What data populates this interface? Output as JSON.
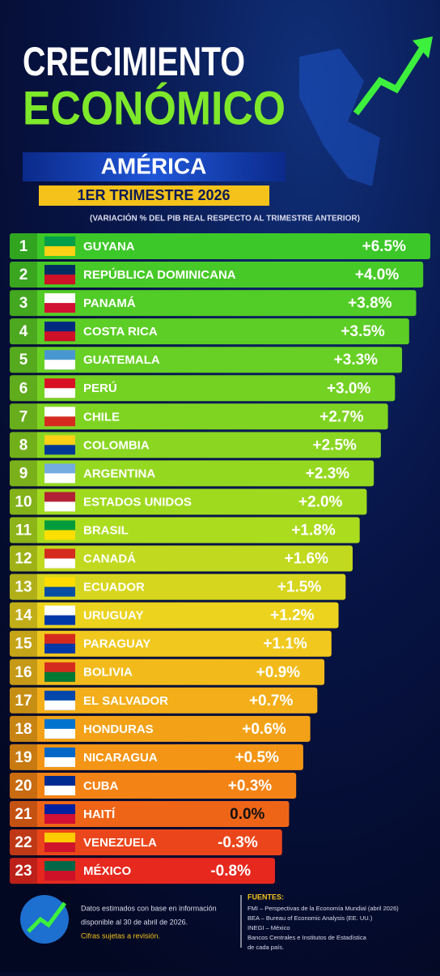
{
  "header": {
    "title_line1": "CRECIMIENTO",
    "title_line2": "ECONÓMICO",
    "region": "AMÉRICA",
    "period": "1ER TRIMESTRE 2026",
    "subtitle": "(VARIACIÓN % DEL PIB REAL RESPECTO AL TRIMESTRE ANTERIOR)"
  },
  "table": {
    "rows": [
      [
        "1",
        "GUYANA",
        "+6.5%"
      ],
      [
        "2",
        "REPÚBLICA DOMINICANA",
        "+4.0%"
      ],
      [
        "3",
        "PANAMÁ",
        "+3.8%"
      ],
      [
        "4",
        "COSTA RICA",
        "+3.5%"
      ],
      [
        "5",
        "GUATEMALA",
        "+3.3%"
      ],
      [
        "6",
        "PERÚ",
        "+3.0%"
      ],
      [
        "7",
        "CHILE",
        "+2.7%"
      ],
      [
        "8",
        "COLOMBIA",
        "+2.5%"
      ],
      [
        "9",
        "ARGENTINA",
        "+2.3%"
      ],
      [
        "10",
        "ESTADOS UNIDOS",
        "+2.0%"
      ],
      [
        "11",
        "BRASIL",
        "+1.8%"
      ],
      [
        "12",
        "CANADÁ",
        "+1.6%"
      ],
      [
        "13",
        "ECUADOR",
        "+1.5%"
      ],
      [
        "14",
        "URUGUAY",
        "+1.2%"
      ],
      [
        "15",
        "PARAGUAY",
        "+1.1%"
      ],
      [
        "16",
        "BOLIVIA",
        "+0.9%"
      ],
      [
        "17",
        "EL SALVADOR",
        "+0.7%"
      ],
      [
        "18",
        "HONDURAS",
        "+0.6%"
      ],
      [
        "19",
        "NICARAGUA",
        "+0.5%"
      ],
      [
        "20",
        "CUBA",
        "+0.3%"
      ],
      [
        "21",
        "HAITÍ",
        "0.0%"
      ],
      [
        "22",
        "VENEZUELA",
        "-0.3%"
      ],
      [
        "23",
        "MÉXICO",
        "-0.8%"
      ]
    ]
  },
  "footer": {
    "note": [
      "Datos estimados con base en información",
      "disponible al 30 de abril de 2026.",
      "Cifras sujetas a revisión."
    ],
    "sources_title": "FUENTES:",
    "sources": [
      "FMI – Perspectivas de la Economía Mundial (abril 2026)",
      "BEA – Bureau of Economic Analysis (EE. UU.)",
      "INEGI – México",
      "Bancos Centrales e Institutos de Estadística",
      "de cada país."
    ]
  }
}
